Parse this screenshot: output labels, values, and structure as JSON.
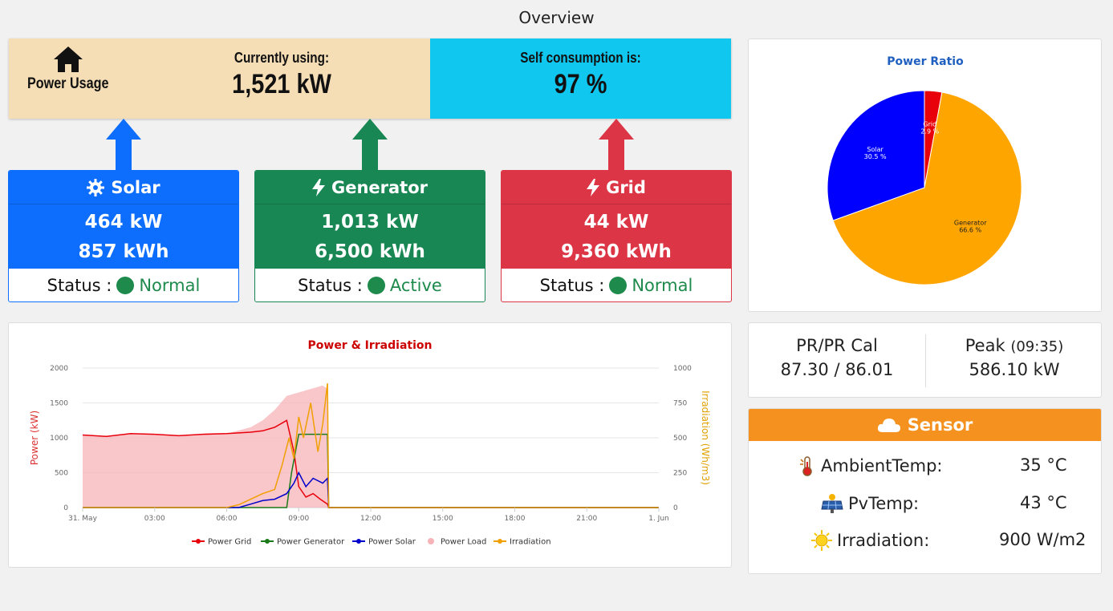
{
  "header": {
    "title": "Overview"
  },
  "usage": {
    "power_usage_label": "Power Usage",
    "currently_using_label": "Currently using:",
    "currently_using_value": "1,521 kW",
    "self_consumption_label": "Self consumption is:",
    "self_consumption_value": "97 %"
  },
  "sources": [
    {
      "name": "Solar",
      "icon": "gear-icon",
      "power": "464 kW",
      "energy": "857 kWh",
      "status_label": "Status :",
      "status": "Normal",
      "color": "#0d6efd"
    },
    {
      "name": "Generator",
      "icon": "lightning-icon",
      "power": "1,013 kW",
      "energy": "6,500 kWh",
      "status_label": "Status :",
      "status": "Active",
      "color": "#198754"
    },
    {
      "name": "Grid",
      "icon": "lightning-icon",
      "power": "44 kW",
      "energy": "9,360 kWh",
      "status_label": "Status :",
      "status": "Normal",
      "color": "#dc3545"
    }
  ],
  "pie": {
    "title": "Power Ratio",
    "chart_data": {
      "type": "pie",
      "title": "Power Ratio",
      "slices": [
        {
          "name": "Grid",
          "value": 2.9,
          "label": "2.9 %",
          "color": "#e8000b"
        },
        {
          "name": "Generator",
          "value": 66.6,
          "label": "66.6 %",
          "color": "#ffa500"
        },
        {
          "name": "Solar",
          "value": 30.5,
          "label": "30.5 %",
          "color": "#0000ff"
        }
      ]
    }
  },
  "chart_data": {
    "type": "line",
    "title": "Power & Irradiation",
    "ylabel": "Power (kW)",
    "y2label": "Irradiation (Wh/m3)",
    "ylim": [
      0,
      2000
    ],
    "y2lim": [
      0,
      1000
    ],
    "yticks": [
      "0",
      "500",
      "1000",
      "1500",
      "2000"
    ],
    "y2ticks": [
      "0",
      "250",
      "500",
      "750",
      "1000"
    ],
    "xticks": [
      "31. May",
      "03:00",
      "06:00",
      "09:00",
      "12:00",
      "15:00",
      "18:00",
      "21:00",
      "1. Jun"
    ],
    "x_hours": [
      0,
      3,
      6,
      9,
      12,
      15,
      18,
      21,
      24
    ],
    "legend_position": "bottom",
    "series": [
      {
        "name": "Power Grid",
        "color": "#e8000b",
        "axis": "left",
        "points": [
          [
            0,
            1040
          ],
          [
            1,
            1020
          ],
          [
            2,
            1060
          ],
          [
            3,
            1050
          ],
          [
            4,
            1030
          ],
          [
            5,
            1050
          ],
          [
            6,
            1060
          ],
          [
            7,
            1080
          ],
          [
            7.5,
            1100
          ],
          [
            8,
            1150
          ],
          [
            8.5,
            1250
          ],
          [
            8.8,
            800
          ],
          [
            9,
            300
          ],
          [
            9.3,
            150
          ],
          [
            9.6,
            200
          ],
          [
            9.9,
            120
          ],
          [
            10.2,
            50
          ],
          [
            10.25,
            0
          ],
          [
            24,
            0
          ]
        ]
      },
      {
        "name": "Power Generator",
        "color": "#1a7a1a",
        "axis": "left",
        "points": [
          [
            0,
            0
          ],
          [
            8.5,
            0
          ],
          [
            8.7,
            500
          ],
          [
            9,
            1050
          ],
          [
            9.5,
            1050
          ],
          [
            10,
            1050
          ],
          [
            10.2,
            1050
          ],
          [
            10.25,
            0
          ],
          [
            24,
            0
          ]
        ]
      },
      {
        "name": "Power Solar",
        "color": "#0000cc",
        "axis": "left",
        "points": [
          [
            0,
            0
          ],
          [
            6.5,
            0
          ],
          [
            7,
            50
          ],
          [
            7.5,
            100
          ],
          [
            8,
            120
          ],
          [
            8.5,
            200
          ],
          [
            8.8,
            350
          ],
          [
            9,
            500
          ],
          [
            9.3,
            300
          ],
          [
            9.6,
            420
          ],
          [
            10,
            350
          ],
          [
            10.2,
            420
          ],
          [
            10.25,
            0
          ],
          [
            24,
            0
          ]
        ]
      },
      {
        "name": "Power Load",
        "color": "#f7b3b8",
        "axis": "left",
        "fill": true,
        "points": [
          [
            0,
            1040
          ],
          [
            1,
            1020
          ],
          [
            2,
            1060
          ],
          [
            3,
            1050
          ],
          [
            4,
            1030
          ],
          [
            5,
            1050
          ],
          [
            6,
            1060
          ],
          [
            7,
            1150
          ],
          [
            7.5,
            1250
          ],
          [
            8,
            1400
          ],
          [
            8.5,
            1600
          ],
          [
            9,
            1650
          ],
          [
            9.5,
            1700
          ],
          [
            10,
            1750
          ],
          [
            10.2,
            1700
          ],
          [
            10.25,
            0
          ],
          [
            24,
            0
          ]
        ]
      },
      {
        "name": "Irradiation",
        "color": "#f0a000",
        "axis": "right",
        "points": [
          [
            0,
            0
          ],
          [
            6,
            0
          ],
          [
            6.5,
            20
          ],
          [
            7,
            60
          ],
          [
            7.5,
            100
          ],
          [
            8,
            130
          ],
          [
            8.3,
            300
          ],
          [
            8.6,
            500
          ],
          [
            8.8,
            350
          ],
          [
            9,
            650
          ],
          [
            9.2,
            500
          ],
          [
            9.5,
            750
          ],
          [
            9.8,
            400
          ],
          [
            10,
            600
          ],
          [
            10.2,
            890
          ],
          [
            10.25,
            0
          ],
          [
            24,
            0
          ]
        ]
      }
    ]
  },
  "performance": {
    "pr_label": "PR/PR Cal",
    "pr_value": "87.30 / 86.01",
    "peak_label": "Peak",
    "peak_time": "(09:35)",
    "peak_value": "586.10 kW"
  },
  "sensor": {
    "title": "Sensor",
    "rows": [
      {
        "label": "AmbientTemp:",
        "value": "35 °C",
        "icon": "thermometer-icon"
      },
      {
        "label": "PvTemp:",
        "value": "43 °C",
        "icon": "solar-panel-icon"
      },
      {
        "label": "Irradiation:",
        "value": "900 W/m2",
        "icon": "sun-icon"
      }
    ]
  }
}
